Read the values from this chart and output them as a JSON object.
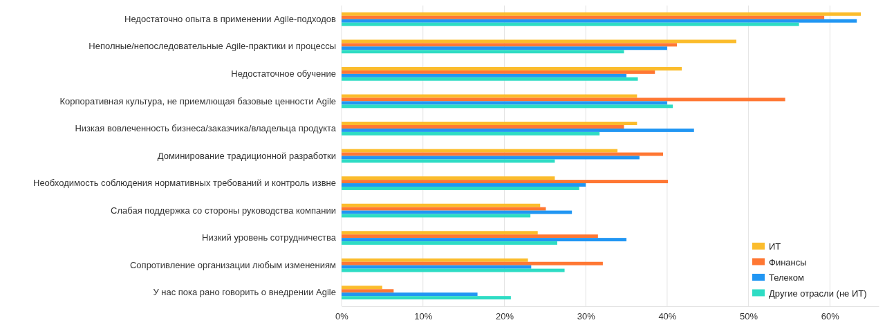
{
  "chart_data": {
    "type": "bar",
    "orientation": "horizontal",
    "categories": [
      "Недостаточно опыта в применении Agile-подходов",
      "Неполные/непоследовательные Agile-практики и процессы",
      "Недостаточное обучение",
      "Корпоративная культура, не приемлющая базовые ценности Agile",
      "Низкая вовлеченность бизнеса/заказчика/владельца продукта",
      "Доминирование традиционной разработки",
      "Необходимость соблюдения нормативных требований и контроль извне",
      "Слабая поддержка со стороны руководства компании",
      "Низкий уровень сотрудничества",
      "Сопротивление организации любым изменениям",
      "У нас пока рано говорить о внедрении Agile"
    ],
    "series": [
      {
        "name": "ИТ",
        "color": "#fbbc2c",
        "values": [
          63.8,
          48.5,
          41.8,
          36.3,
          36.3,
          33.9,
          26.2,
          24.4,
          24.1,
          22.9,
          5.0
        ]
      },
      {
        "name": "Финансы",
        "color": "#ff7733",
        "values": [
          59.3,
          41.2,
          38.5,
          54.5,
          34.7,
          39.5,
          40.1,
          25.1,
          31.5,
          32.1,
          6.4
        ]
      },
      {
        "name": "Телеком",
        "color": "#2196f3",
        "values": [
          63.3,
          40.0,
          35.0,
          40.0,
          43.3,
          36.6,
          30.0,
          28.3,
          35.0,
          23.3,
          16.7
        ]
      },
      {
        "name": "Другие отрасли (не ИТ)",
        "color": "#2edcc4",
        "values": [
          56.2,
          34.7,
          36.4,
          40.7,
          31.7,
          26.2,
          29.2,
          23.2,
          26.5,
          27.4,
          20.8
        ]
      }
    ],
    "xlim": [
      0,
      66
    ],
    "xticks": [
      {
        "value": 0,
        "label": "0%"
      },
      {
        "value": 10,
        "label": "10%"
      },
      {
        "value": 20,
        "label": "20%"
      },
      {
        "value": 30,
        "label": "30%"
      },
      {
        "value": 40,
        "label": "40%"
      },
      {
        "value": 50,
        "label": "50%"
      },
      {
        "value": 60,
        "label": "60%"
      }
    ],
    "grid": "x",
    "legend": "bottom right"
  }
}
